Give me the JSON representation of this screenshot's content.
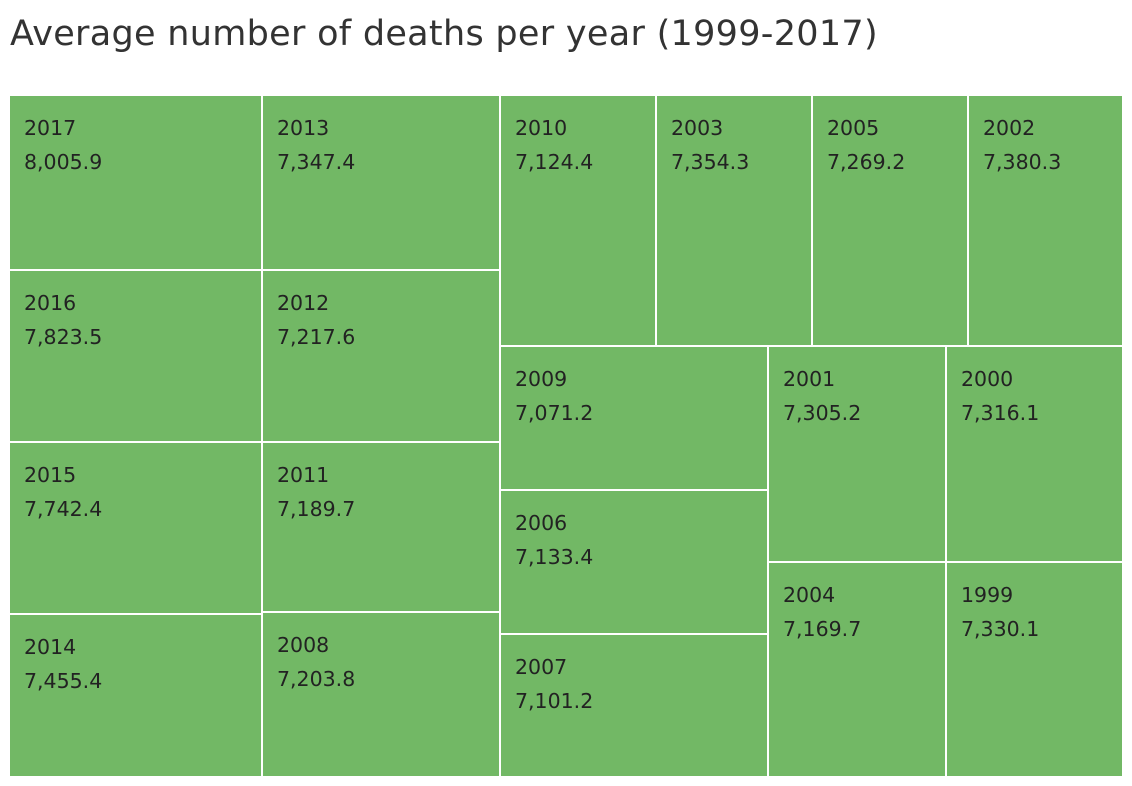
{
  "chart_data": {
    "type": "treemap",
    "title": "Average number of deaths per year (1999-2017)",
    "color": "#72b865",
    "border_color": "#ffffff",
    "label_color": "#222222",
    "items": [
      {
        "year": "2017",
        "value": 8005.9,
        "value_label": "8,005.9"
      },
      {
        "year": "2016",
        "value": 7823.5,
        "value_label": "7,823.5"
      },
      {
        "year": "2015",
        "value": 7742.4,
        "value_label": "7,742.4"
      },
      {
        "year": "2014",
        "value": 7455.4,
        "value_label": "7,455.4"
      },
      {
        "year": "2013",
        "value": 7347.4,
        "value_label": "7,347.4"
      },
      {
        "year": "2012",
        "value": 7217.6,
        "value_label": "7,217.6"
      },
      {
        "year": "2011",
        "value": 7189.7,
        "value_label": "7,189.7"
      },
      {
        "year": "2008",
        "value": 7203.8,
        "value_label": "7,203.8"
      },
      {
        "year": "2010",
        "value": 7124.4,
        "value_label": "7,124.4"
      },
      {
        "year": "2003",
        "value": 7354.3,
        "value_label": "7,354.3"
      },
      {
        "year": "2005",
        "value": 7269.2,
        "value_label": "7,269.2"
      },
      {
        "year": "2002",
        "value": 7380.3,
        "value_label": "7,380.3"
      },
      {
        "year": "2009",
        "value": 7071.2,
        "value_label": "7,071.2"
      },
      {
        "year": "2006",
        "value": 7133.4,
        "value_label": "7,133.4"
      },
      {
        "year": "2007",
        "value": 7101.2,
        "value_label": "7,101.2"
      },
      {
        "year": "2001",
        "value": 7305.2,
        "value_label": "7,305.2"
      },
      {
        "year": "2000",
        "value": 7316.1,
        "value_label": "7,316.1"
      },
      {
        "year": "2004",
        "value": 7169.7,
        "value_label": "7,169.7"
      },
      {
        "year": "1999",
        "value": 7330.1,
        "value_label": "7,330.1"
      }
    ]
  }
}
